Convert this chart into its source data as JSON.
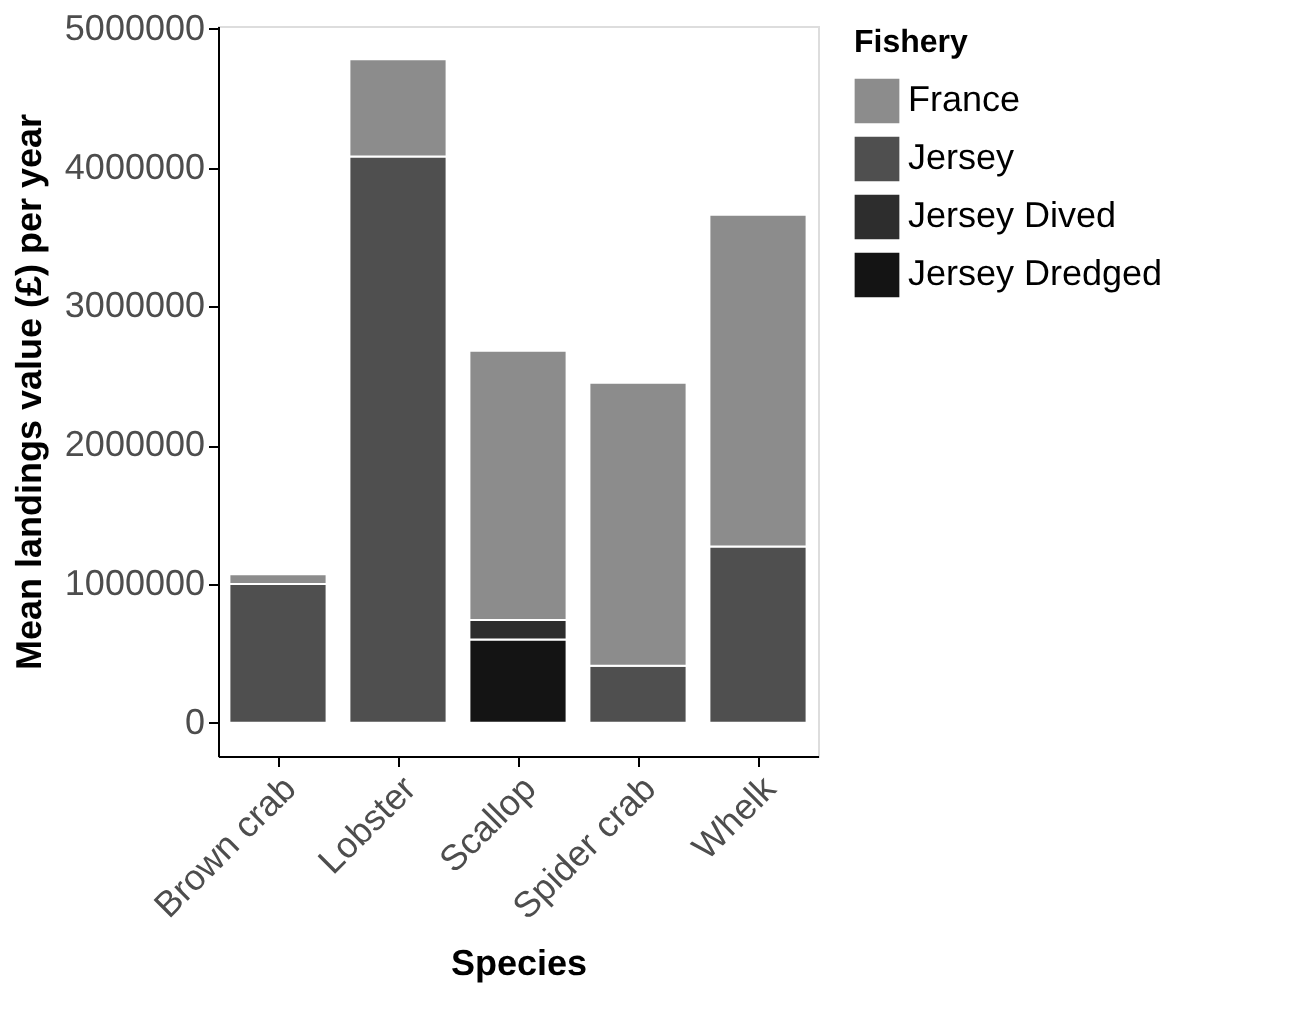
{
  "chart_data": {
    "type": "bar",
    "stacked": true,
    "xlabel": "Species",
    "ylabel": "Mean landings value (£) per year",
    "legend_title": "Fishery",
    "legend": "right",
    "categories": [
      "Brown crab",
      "Lobster",
      "Scallop",
      "Spider crab",
      "Whelk"
    ],
    "series": [
      {
        "name": "Jersey Dredged",
        "color": "#141414",
        "values": [
          null,
          null,
          600000,
          null,
          null
        ]
      },
      {
        "name": "Jersey Dived",
        "color": "#2d2d2d",
        "values": [
          null,
          null,
          140000,
          null,
          null
        ]
      },
      {
        "name": "Jersey",
        "color": "#4f4f4f",
        "values": [
          1000000,
          4080000,
          null,
          410000,
          1270000
        ]
      },
      {
        "name": "France",
        "color": "#8c8c8c",
        "values": [
          70000,
          700000,
          1940000,
          2040000,
          2390000
        ]
      }
    ],
    "ylim": [
      -240000,
      5020000
    ],
    "yticks": [
      0,
      1000000,
      2000000,
      3000000,
      4000000,
      5000000
    ],
    "grid": false
  }
}
